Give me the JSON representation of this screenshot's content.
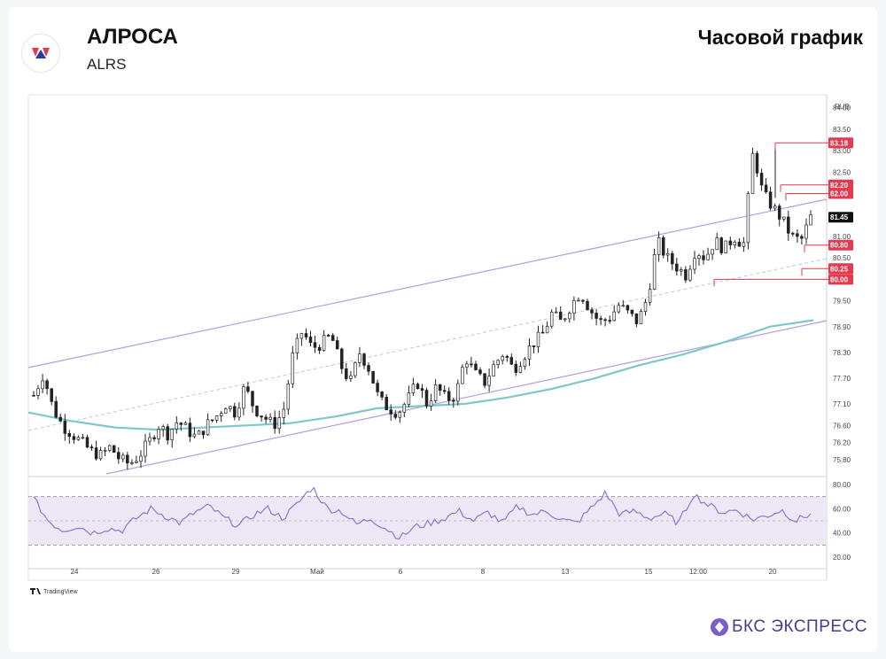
{
  "header": {
    "company": "АЛРОСА",
    "ticker": "ALRS",
    "chart_kind": "Часовой график"
  },
  "brand": {
    "name": "БКС ЭКСПРЕСС",
    "watermark": "TradingView"
  },
  "colors": {
    "up": "#26a69a",
    "down": "#222222",
    "channel": "#b39ddb",
    "ma": "#7ec8c8",
    "rsi": "#9575cd",
    "rsi_band": "#ede7f6",
    "label_red": "#e53950",
    "label_last": "#111111"
  },
  "chart_data": [
    {
      "type": "candlestick",
      "currency": "RUB",
      "y_ticks": [
        "84.00",
        "83.50",
        "83.00",
        "82.50",
        "81.00",
        "80.50",
        "79.50",
        "78.90",
        "78.30",
        "77.70",
        "77.10",
        "76.60",
        "76.20",
        "75.80"
      ],
      "x_ticks": [
        "24",
        "26",
        "29",
        "Май",
        "6",
        "8",
        "13",
        "15",
        "12:00",
        "20"
      ],
      "ylim": [
        75.45,
        84.3
      ],
      "price_labels": [
        {
          "value": 83.18,
          "text": "83.18",
          "kind": "level"
        },
        {
          "value": 82.2,
          "text": "82.20",
          "kind": "level"
        },
        {
          "value": 82.0,
          "text": "82.00",
          "kind": "level"
        },
        {
          "value": 81.45,
          "text": "81.45",
          "kind": "last"
        },
        {
          "value": 80.8,
          "text": "80.80",
          "kind": "level"
        },
        {
          "value": 80.25,
          "text": "80.25",
          "kind": "level"
        },
        {
          "value": 80.0,
          "text": "80.00",
          "kind": "level"
        }
      ],
      "close_path": [
        77.3,
        77.8,
        77.0,
        76.6,
        76.4,
        76.2,
        76.0,
        75.9,
        76.1,
        75.8,
        75.7,
        75.9,
        76.2,
        76.6,
        76.4,
        76.7,
        76.5,
        76.3,
        76.6,
        76.8,
        77.1,
        76.9,
        77.5,
        77.0,
        76.8,
        76.6,
        76.9,
        78.2,
        78.8,
        78.4,
        78.5,
        78.7,
        78.0,
        77.6,
        78.3,
        77.9,
        77.2,
        77.0,
        76.9,
        77.2,
        77.6,
        77.1,
        77.5,
        77.2,
        77.3,
        78.2,
        77.8,
        77.6,
        78.0,
        78.3,
        77.9,
        78.2,
        78.5,
        78.7,
        79.2,
        79.0,
        79.4,
        79.7,
        79.3,
        79.0,
        79.1,
        79.4,
        79.2,
        79.0,
        79.6,
        80.9,
        80.5,
        80.3,
        80.1,
        80.7,
        80.5,
        80.9,
        80.7,
        81.0,
        80.8,
        83.0,
        82.0,
        81.7,
        81.4,
        81.0,
        80.9,
        81.45
      ],
      "series": [
        {
          "name": "",
          "kind": "ma_trend",
          "values": [
            76.9,
            76.7,
            76.55,
            76.5,
            76.55,
            76.6,
            76.65,
            76.8,
            77.0,
            77.05,
            77.1,
            77.25,
            77.45,
            77.7,
            78.0,
            78.25,
            78.55,
            78.9,
            79.05
          ]
        },
        {
          "name": "",
          "kind": "rsi",
          "values": [
            68,
            50,
            42,
            46,
            40,
            44,
            42,
            52,
            60,
            54,
            48,
            57,
            62,
            52,
            46,
            55,
            60,
            52,
            64,
            78,
            60,
            58,
            47,
            52,
            44,
            36,
            45,
            48,
            52,
            58,
            50,
            57,
            48,
            62,
            55,
            58,
            51,
            48,
            60,
            73,
            55,
            58,
            52,
            56,
            48,
            72,
            63,
            57,
            59,
            51,
            54,
            59,
            50,
            56
          ]
        }
      ],
      "rsi_axis": {
        "ticks": [
          "80.00",
          "60.00",
          "40.00",
          "20.00"
        ],
        "upper_band": 70,
        "lower_band": 30,
        "mid_line": 50
      }
    }
  ]
}
